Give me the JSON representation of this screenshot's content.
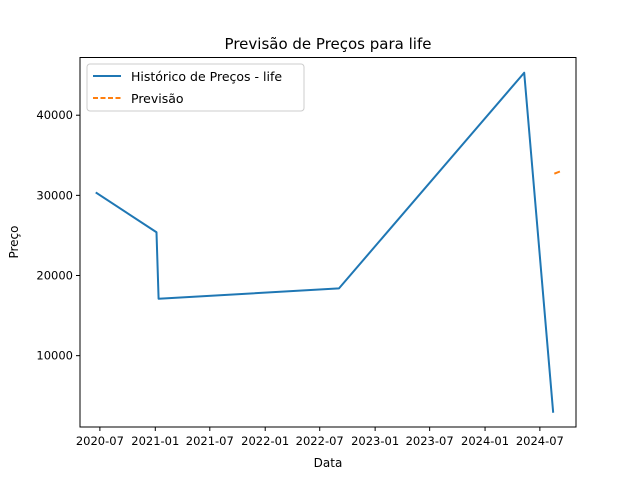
{
  "chart_data": {
    "type": "line",
    "title": "Previsão de Preços para life",
    "xlabel": "Data",
    "ylabel": "Preço",
    "x_ticks": [
      "2020-07",
      "2021-01",
      "2021-07",
      "2022-01",
      "2022-07",
      "2023-01",
      "2023-07",
      "2024-01",
      "2024-07"
    ],
    "y_ticks": [
      10000,
      20000,
      30000,
      40000
    ],
    "xlim": [
      "2020-04-26",
      "2024-10-29"
    ],
    "ylim": [
      1100,
      47200
    ],
    "grid": false,
    "legend_position": "top-left",
    "series": [
      {
        "name": "Histórico de Preços - life",
        "color": "#1f77b4",
        "style": "solid",
        "points": [
          {
            "x": "2020-06-20",
            "y": 30300
          },
          {
            "x": "2021-01-05",
            "y": 25400
          },
          {
            "x": "2021-01-12",
            "y": 17100
          },
          {
            "x": "2022-09-03",
            "y": 18400
          },
          {
            "x": "2024-05-10",
            "y": 45300
          },
          {
            "x": "2024-08-14",
            "y": 3000
          }
        ]
      },
      {
        "name": "Previsão",
        "color": "#ff7f0e",
        "style": "dashed",
        "points": [
          {
            "x": "2024-08-18",
            "y": 32700
          },
          {
            "x": "2024-09-07",
            "y": 33000
          }
        ]
      }
    ]
  }
}
